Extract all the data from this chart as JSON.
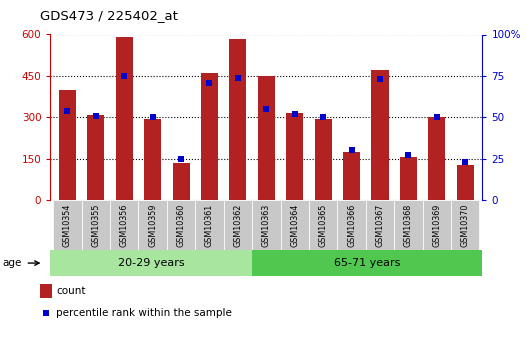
{
  "title": "GDS473 / 225402_at",
  "samples": [
    "GSM10354",
    "GSM10355",
    "GSM10356",
    "GSM10359",
    "GSM10360",
    "GSM10361",
    "GSM10362",
    "GSM10363",
    "GSM10364",
    "GSM10365",
    "GSM10366",
    "GSM10367",
    "GSM10368",
    "GSM10369",
    "GSM10370"
  ],
  "count_values": [
    400,
    310,
    590,
    293,
    135,
    460,
    585,
    450,
    315,
    295,
    175,
    470,
    155,
    300,
    128
  ],
  "percentile_values": [
    54,
    51,
    75,
    50,
    25,
    71,
    74,
    55,
    52,
    50,
    30,
    73,
    27,
    50,
    23
  ],
  "group1_label": "20-29 years",
  "group2_label": "65-71 years",
  "group1_count": 7,
  "group2_count": 8,
  "left_ylim": [
    0,
    600
  ],
  "right_ylim": [
    0,
    100
  ],
  "left_yticks": [
    0,
    150,
    300,
    450,
    600
  ],
  "right_yticks": [
    0,
    25,
    50,
    75,
    100
  ],
  "bar_color": "#b22222",
  "percentile_color": "#0000cc",
  "group1_bg": "#a8e6a0",
  "group2_bg": "#50c850",
  "xticklabels_bg": "#c8c8c8",
  "age_label": "age",
  "legend_count": "count",
  "legend_percentile": "percentile rank within the sample",
  "bar_width": 0.6,
  "left_axis_color": "#cc0000",
  "right_axis_color": "#0000cc"
}
